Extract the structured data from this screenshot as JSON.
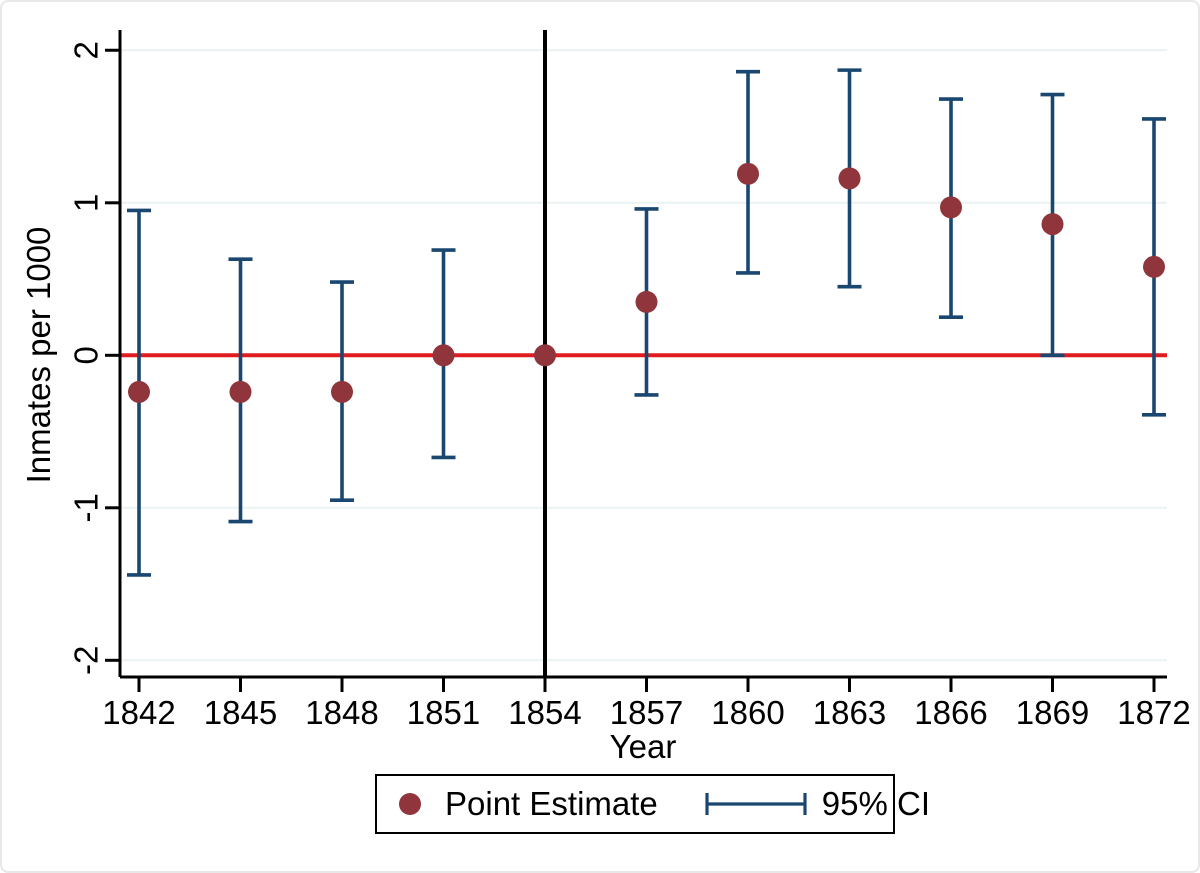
{
  "figure": {
    "background": "#ffffff",
    "frame_border_color": "#e8e8e8"
  },
  "chart_data": {
    "type": "scatter",
    "subtype": "event-study point estimates with 95% confidence intervals",
    "title": "",
    "xlabel": "Year",
    "ylabel": "Inmates per 1000",
    "x": [
      1842,
      1845,
      1848,
      1851,
      1854,
      1857,
      1860,
      1863,
      1866,
      1869,
      1872
    ],
    "x_tick_labels": [
      "1842",
      "1845",
      "1848",
      "1851",
      "1854",
      "1857",
      "1860",
      "1863",
      "1866",
      "1869",
      "1872"
    ],
    "y_ticks": [
      2,
      1,
      0,
      -1,
      -2
    ],
    "y_tick_labels": [
      "2",
      "1",
      "0",
      "-1",
      "-2"
    ],
    "ylim": [
      -2.12,
      2.12
    ],
    "grid": true,
    "gridline_color": "#eaf2f3",
    "series": [
      {
        "name": "Point Estimate",
        "marker": "circle",
        "color": "#90353b",
        "values": [
          -0.24,
          -0.24,
          -0.24,
          0.0,
          0.0,
          0.35,
          1.19,
          1.16,
          0.97,
          0.86,
          0.58
        ]
      },
      {
        "name": "95% CI",
        "marker": "error-bar",
        "color": "#1a476f",
        "lower": [
          -1.44,
          -1.09,
          -0.95,
          -0.67,
          null,
          -0.26,
          0.54,
          0.45,
          0.25,
          0.0,
          -0.39
        ],
        "upper": [
          0.95,
          0.63,
          0.48,
          0.69,
          null,
          0.96,
          1.86,
          1.87,
          1.68,
          1.71,
          1.55
        ]
      }
    ],
    "reference_lines": {
      "horizontal": {
        "y": 0,
        "color": "#e01c20"
      },
      "vertical": {
        "x": 1854,
        "color": "#000000"
      }
    },
    "legend_position": "bottom"
  },
  "legend": {
    "point_label": "Point Estimate",
    "ci_label": "95% CI",
    "point_color": "#90353b",
    "ci_color": "#1a476f"
  }
}
